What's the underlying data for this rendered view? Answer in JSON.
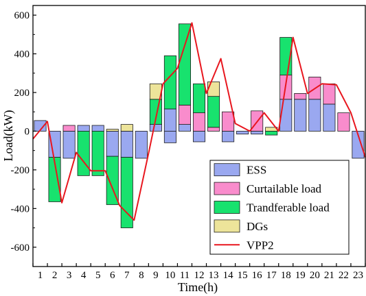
{
  "chart_data": {
    "type": "bar",
    "stacked": true,
    "categories": [
      "1",
      "2",
      "3",
      "4",
      "5",
      "6",
      "7",
      "8",
      "9",
      "10",
      "11",
      "12",
      "13",
      "14",
      "15",
      "16",
      "17",
      "18",
      "19",
      "20",
      "21",
      "22",
      "23"
    ],
    "series": [
      {
        "name": "ESS",
        "color": "#9aa8f0",
        "pos": [
          55,
          0,
          0,
          30,
          30,
          0,
          0,
          0,
          35,
          115,
          35,
          0,
          0,
          0,
          0,
          0,
          0,
          165,
          165,
          165,
          140,
          0,
          0
        ],
        "neg": [
          0,
          -135,
          -140,
          0,
          0,
          -130,
          -135,
          -140,
          0,
          -60,
          0,
          -55,
          0,
          -55,
          -15,
          -15,
          0,
          0,
          0,
          0,
          0,
          0,
          -140
        ]
      },
      {
        "name": "Curtailable load",
        "color": "#f98ccc",
        "pos": [
          0,
          0,
          30,
          0,
          0,
          0,
          0,
          0,
          0,
          0,
          100,
          95,
          20,
          100,
          0,
          105,
          0,
          125,
          30,
          115,
          105,
          95,
          0
        ],
        "neg": [
          0,
          0,
          0,
          0,
          0,
          0,
          0,
          0,
          0,
          0,
          0,
          0,
          0,
          0,
          0,
          0,
          0,
          0,
          0,
          0,
          0,
          0,
          0
        ]
      },
      {
        "name": "Trandferable load",
        "color": "#18e26e",
        "pos": [
          0,
          0,
          0,
          0,
          0,
          0,
          0,
          0,
          130,
          275,
          420,
          150,
          160,
          0,
          0,
          0,
          0,
          195,
          0,
          0,
          0,
          0,
          0
        ],
        "neg": [
          0,
          -230,
          0,
          -230,
          -230,
          -250,
          -365,
          0,
          0,
          0,
          0,
          0,
          0,
          0,
          0,
          0,
          -20,
          0,
          0,
          0,
          0,
          0,
          0
        ]
      },
      {
        "name": "DGs",
        "color": "#ede49a",
        "pos": [
          0,
          0,
          0,
          0,
          0,
          10,
          35,
          0,
          80,
          0,
          0,
          0,
          75,
          0,
          0,
          0,
          20,
          0,
          0,
          0,
          0,
          0,
          0
        ],
        "neg": [
          0,
          0,
          0,
          0,
          0,
          0,
          0,
          0,
          0,
          0,
          0,
          0,
          0,
          0,
          0,
          0,
          0,
          0,
          0,
          0,
          0,
          0,
          0
        ]
      }
    ],
    "line_series": {
      "name": "VPP2",
      "color": "#e8161e",
      "values": [
        -40,
        50,
        -370,
        -110,
        -205,
        -205,
        -385,
        -460,
        -115,
        245,
        325,
        560,
        195,
        375,
        40,
        0,
        95,
        0,
        485,
        195,
        245,
        240,
        95,
        -135
      ]
    },
    "xlabel": "Time(h)",
    "ylabel": "Load(kW)",
    "ylim": [
      -700,
      650
    ],
    "yticks": [
      -600,
      -400,
      -200,
      0,
      200,
      400,
      600
    ],
    "legend_position": "bottom-right",
    "grid": false
  }
}
